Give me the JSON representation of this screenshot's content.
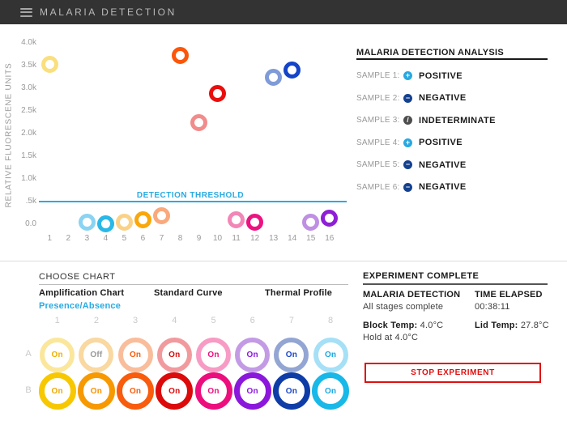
{
  "header": {
    "title": "MALARIA DETECTION"
  },
  "chart_data": {
    "type": "scatter",
    "title": "",
    "xlabel": "",
    "ylabel": "RELATIVE FLUORESCENE UNITS",
    "x_ticks": [
      "1",
      "2",
      "3",
      "4",
      "5",
      "6",
      "7",
      "8",
      "9",
      "10",
      "11",
      "12",
      "13",
      "14",
      "15",
      "16"
    ],
    "y_ticks": [
      "4.0k",
      "3.5k",
      "3.0k",
      "2.5k",
      "2.0k",
      "1.5k",
      "1.0k",
      ".5k",
      "0.0"
    ],
    "ylim": [
      0,
      4000
    ],
    "grid": false,
    "threshold": {
      "label": "DETECTION THRESHOLD",
      "value": 500,
      "color": "#29abe2"
    },
    "points": [
      {
        "x": 1,
        "y": 3520,
        "color": "#fadf7e"
      },
      {
        "x": 3,
        "y": 50,
        "color": "#8ad3f2"
      },
      {
        "x": 4,
        "y": 10,
        "color": "#29b8e8"
      },
      {
        "x": 5,
        "y": 40,
        "color": "#fad287"
      },
      {
        "x": 6,
        "y": 100,
        "color": "#f9a70a"
      },
      {
        "x": 7,
        "y": 190,
        "color": "#f9a97c"
      },
      {
        "x": 8,
        "y": 3730,
        "color": "#fb560a"
      },
      {
        "x": 9,
        "y": 2240,
        "color": "#f28b8b"
      },
      {
        "x": 10,
        "y": 2880,
        "color": "#e90f0f"
      },
      {
        "x": 11,
        "y": 100,
        "color": "#f287b7"
      },
      {
        "x": 12,
        "y": 40,
        "color": "#ec1380"
      },
      {
        "x": 13,
        "y": 3250,
        "color": "#7f9bd8"
      },
      {
        "x": 14,
        "y": 3400,
        "color": "#1444c8"
      },
      {
        "x": 15,
        "y": 40,
        "color": "#bf8fe3"
      },
      {
        "x": 16,
        "y": 140,
        "color": "#8f1fd6"
      }
    ]
  },
  "analysis": {
    "title": "MALARIA DETECTION ANALYSIS",
    "samples": [
      {
        "label": "SAMPLE 1:",
        "status": "POSITIVE",
        "icon": "plus-circle-icon",
        "glyph": "+",
        "color": "#29a8e0"
      },
      {
        "label": "SAMPLE 2:",
        "status": "NEGATIVE",
        "icon": "minus-circle-icon",
        "glyph": "−",
        "color": "#14418f"
      },
      {
        "label": "SAMPLE 3:",
        "status": "INDETERMINATE",
        "icon": "slash-circle-icon",
        "glyph": "/",
        "color": "#4d4d4d"
      },
      {
        "label": "SAMPLE 4:",
        "status": "POSITIVE",
        "icon": "plus-circle-icon",
        "glyph": "+",
        "color": "#29a8e0"
      },
      {
        "label": "SAMPLE 5:",
        "status": "NEGATIVE",
        "icon": "minus-circle-icon",
        "glyph": "−",
        "color": "#14418f"
      },
      {
        "label": "SAMPLE 6:",
        "status": "NEGATIVE",
        "icon": "minus-circle-icon",
        "glyph": "−",
        "color": "#14418f"
      }
    ]
  },
  "chart_chooser": {
    "title": "CHOOSE CHART",
    "selected_color": "#29abe2",
    "options": [
      {
        "label": "Amplification Chart",
        "selected": false
      },
      {
        "label": "Standard Curve",
        "selected": false
      },
      {
        "label": "Thermal Profile",
        "selected": false
      },
      {
        "label": "Presence/Absence",
        "selected": true
      }
    ]
  },
  "wells": {
    "columns": [
      "1",
      "2",
      "3",
      "4",
      "5",
      "6",
      "7",
      "8"
    ],
    "rows": [
      "A",
      "B"
    ],
    "grid": [
      [
        {
          "state": "On",
          "ring": "#fbe79c",
          "text": "#f0b000"
        },
        {
          "state": "Off",
          "ring": "#f9d8a1",
          "text": "#999999"
        },
        {
          "state": "On",
          "ring": "#f9bd9b",
          "text": "#f85c0c"
        },
        {
          "state": "On",
          "ring": "#f19a9e",
          "text": "#dc0a0a"
        },
        {
          "state": "On",
          "ring": "#f79bc5",
          "text": "#ed0e7e"
        },
        {
          "state": "On",
          "ring": "#c39be5",
          "text": "#8b17dc"
        },
        {
          "state": "On",
          "ring": "#93a5d2",
          "text": "#1846c8"
        },
        {
          "state": "On",
          "ring": "#a5e0f7",
          "text": "#18a8e0"
        }
      ],
      [
        {
          "state": "On",
          "ring": "#f7c800",
          "text": "#f0a800"
        },
        {
          "state": "On",
          "ring": "#f79900",
          "text": "#f79000"
        },
        {
          "state": "On",
          "ring": "#f85c0c",
          "text": "#f85c0c"
        },
        {
          "state": "On",
          "ring": "#dc0a0a",
          "text": "#dc0a0a"
        },
        {
          "state": "On",
          "ring": "#ed0e7e",
          "text": "#ed0e7e"
        },
        {
          "state": "On",
          "ring": "#8b17dc",
          "text": "#8b17dc"
        },
        {
          "state": "On",
          "ring": "#0e3da8",
          "text": "#1846c8"
        },
        {
          "state": "On",
          "ring": "#18b8e8",
          "text": "#18a8e0"
        }
      ]
    ]
  },
  "experiment": {
    "title": "EXPERIMENT COMPLETE",
    "protocol_name": "MALARIA DETECTION",
    "protocol_status": "All stages complete",
    "time_elapsed_label": "TIME ELAPSED",
    "time_elapsed": "00:38:11",
    "block_temp_label": "Block Temp:",
    "block_temp": "4.0°C",
    "lid_temp_label": "Lid Temp:",
    "lid_temp": "27.8°C",
    "hold_text": "Hold at 4.0°C",
    "stop_button": "STOP EXPERIMENT",
    "stop_color": "#e01010"
  }
}
